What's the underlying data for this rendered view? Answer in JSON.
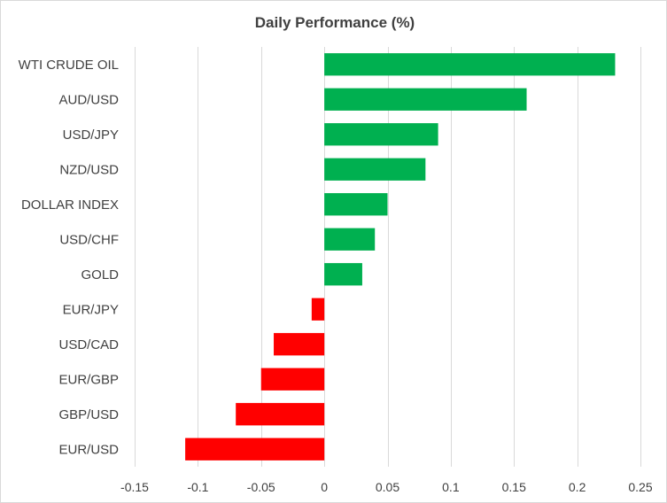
{
  "chart_data": {
    "type": "bar",
    "orientation": "horizontal",
    "title": "Daily Performance  (%)",
    "categories": [
      "WTI CRUDE OIL",
      "AUD/USD",
      "USD/JPY",
      "NZD/USD",
      "DOLLAR INDEX",
      "USD/CHF",
      "GOLD",
      "EUR/JPY",
      "USD/CAD",
      "EUR/GBP",
      "GBP/USD",
      "EUR/USD"
    ],
    "values": [
      0.23,
      0.16,
      0.09,
      0.08,
      0.05,
      0.04,
      0.03,
      -0.01,
      -0.04,
      -0.05,
      -0.07,
      -0.11
    ],
    "xlim": [
      -0.15,
      0.25
    ],
    "xticks": [
      -0.15,
      -0.1,
      -0.05,
      0,
      0.05,
      0.1,
      0.15,
      0.2,
      0.25
    ],
    "xtick_labels": [
      "-0.15",
      "-0.1",
      "-0.05",
      "0",
      "0.05",
      "0.1",
      "0.15",
      "0.2",
      "0.25"
    ],
    "grid": true,
    "colors": {
      "positive": "#00b050",
      "negative": "#ff0000",
      "grid": "#d9d9d9",
      "text": "#404040"
    }
  }
}
